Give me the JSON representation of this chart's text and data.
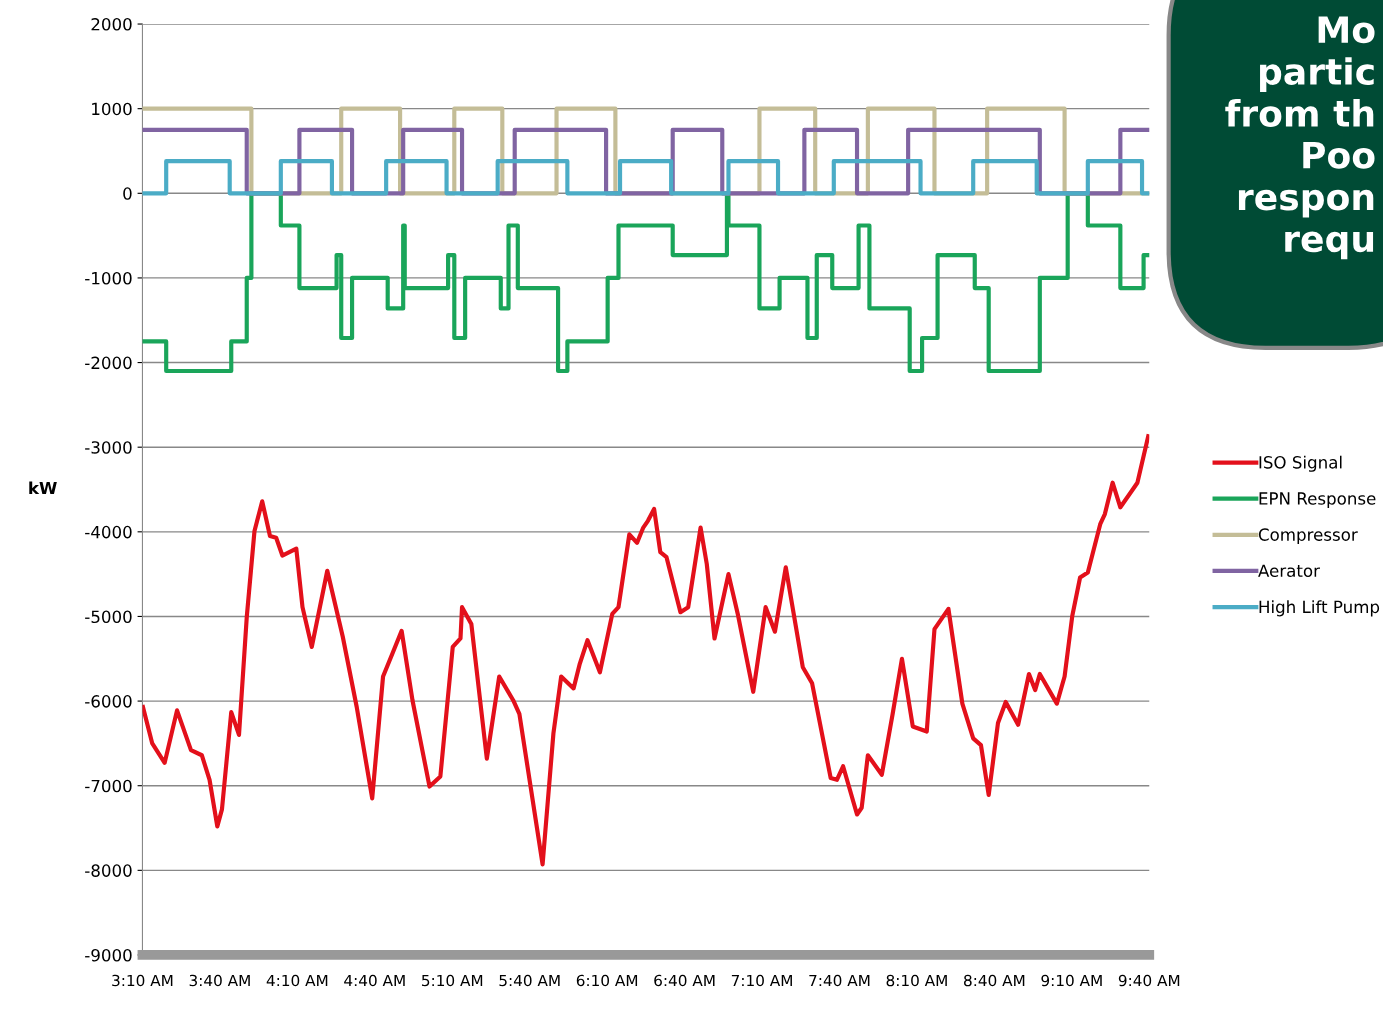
{
  "chart_data": {
    "type": "line",
    "ylabel": "kW",
    "xlim": [
      3.1667,
      9.6667
    ],
    "xticks": [
      {
        "value": 3.1667,
        "label": "3:10 AM"
      },
      {
        "value": 3.6667,
        "label": "3:40 AM"
      },
      {
        "value": 4.1667,
        "label": "4:10 AM"
      },
      {
        "value": 4.6667,
        "label": "4:40 AM"
      },
      {
        "value": 5.1667,
        "label": "5:10 AM"
      },
      {
        "value": 5.6667,
        "label": "5:40 AM"
      },
      {
        "value": 6.1667,
        "label": "6:10 AM"
      },
      {
        "value": 6.6667,
        "label": "6:40 AM"
      },
      {
        "value": 7.1667,
        "label": "7:10 AM"
      },
      {
        "value": 7.6667,
        "label": "7:40 AM"
      },
      {
        "value": 8.1667,
        "label": "8:10 AM"
      },
      {
        "value": 8.6667,
        "label": "8:40 AM"
      },
      {
        "value": 9.1667,
        "label": "9:10 AM"
      },
      {
        "value": 9.6667,
        "label": "9:40 AM"
      }
    ],
    "ylim": [
      -9000,
      2000
    ],
    "yticks": [
      -9000,
      -8000,
      -7000,
      -6000,
      -5000,
      -4000,
      -3000,
      -2000,
      -1000,
      0,
      1000,
      2000
    ],
    "grid": "y",
    "legend": "right",
    "marker": "none",
    "line_style": "solid",
    "annotations": [
      "Mo\npartic\nfrom th\nPoo\nrespon\nrequ"
    ],
    "series": [
      {
        "name": "ISO Signal",
        "color": "#e3101b",
        "x": [
          3.17,
          3.23,
          3.31,
          3.39,
          3.48,
          3.55,
          3.6,
          3.65,
          3.68,
          3.74,
          3.79,
          3.84,
          3.89,
          3.94,
          3.99,
          4.03,
          4.07,
          4.16,
          4.2,
          4.26,
          4.36,
          4.46,
          4.55,
          4.65,
          4.72,
          4.78,
          4.84,
          4.91,
          5.02,
          5.09,
          5.17,
          5.22,
          5.23,
          5.29,
          5.39,
          5.47,
          5.56,
          5.6,
          5.75,
          5.82,
          5.87,
          5.95,
          5.99,
          6.04,
          6.12,
          6.2,
          6.24,
          6.31,
          6.36,
          6.4,
          6.43,
          6.47,
          6.51,
          6.55,
          6.64,
          6.69,
          6.77,
          6.81,
          6.86,
          6.95,
          7.01,
          7.11,
          7.19,
          7.25,
          7.32,
          7.43,
          7.49,
          7.61,
          7.65,
          7.69,
          7.78,
          7.81,
          7.85,
          7.94,
          8.01,
          8.07,
          8.14,
          8.23,
          8.28,
          8.37,
          8.46,
          8.53,
          8.58,
          8.63,
          8.69,
          8.74,
          8.82,
          8.89,
          8.93,
          8.96,
          9.07,
          9.12,
          9.17,
          9.22,
          9.27,
          9.35,
          9.38,
          9.43,
          9.48,
          9.56,
          9.59,
          9.66
        ],
        "values": [
          -6070,
          -6500,
          -6730,
          -6110,
          -6580,
          -6640,
          -6930,
          -7480,
          -7280,
          -6130,
          -6400,
          -5010,
          -3990,
          -3640,
          -4050,
          -4070,
          -4280,
          -4200,
          -4890,
          -5360,
          -4460,
          -5240,
          -6070,
          -7150,
          -5710,
          -5440,
          -5170,
          -5990,
          -7010,
          -6890,
          -5360,
          -5260,
          -4890,
          -5090,
          -6680,
          -5710,
          -5990,
          -6150,
          -7930,
          -6380,
          -5710,
          -5850,
          -5560,
          -5280,
          -5660,
          -4970,
          -4890,
          -4030,
          -4130,
          -3950,
          -3870,
          -3730,
          -4240,
          -4300,
          -4950,
          -4890,
          -3950,
          -4380,
          -5260,
          -4500,
          -4970,
          -5890,
          -4890,
          -5180,
          -4420,
          -5600,
          -5790,
          -6910,
          -6930,
          -6770,
          -7340,
          -7260,
          -6640,
          -6870,
          -6150,
          -5500,
          -6300,
          -6360,
          -5150,
          -4910,
          -6030,
          -6440,
          -6520,
          -7110,
          -6260,
          -6010,
          -6280,
          -5680,
          -5870,
          -5680,
          -6030,
          -5710,
          -4990,
          -4540,
          -4480,
          -3910,
          -3790,
          -3420,
          -3710,
          -3500,
          -3420,
          -2870
        ]
      },
      {
        "name": "EPN Response",
        "color": "#1aa55a",
        "type": "step",
        "x": [
          3.17,
          3.32,
          3.74,
          3.84,
          3.87,
          4.06,
          4.18,
          4.42,
          4.45,
          4.52,
          4.75,
          4.85,
          4.86,
          5.14,
          5.18,
          5.25,
          5.48,
          5.53,
          5.59,
          5.85,
          5.91,
          6.17,
          6.24,
          6.59,
          6.94,
          6.95,
          7.15,
          7.28,
          7.46,
          7.52,
          7.62,
          7.79,
          7.86,
          8.12,
          8.2,
          8.3,
          8.54,
          8.63,
          8.96,
          9.14,
          9.27,
          9.48,
          9.63,
          9.66
        ],
        "values": [
          -1750,
          -2100,
          -1750,
          -1000,
          0,
          -380,
          -1120,
          -730,
          -1710,
          -1000,
          -1360,
          -380,
          -1120,
          -730,
          -1710,
          -1000,
          -1360,
          -380,
          -1120,
          -2100,
          -1750,
          -1000,
          -380,
          -730,
          0,
          -380,
          -1360,
          -1000,
          -1710,
          -730,
          -1120,
          -380,
          -1360,
          -2100,
          -1710,
          -730,
          -1120,
          -2100,
          -1000,
          0,
          -380,
          -1120,
          -730,
          -730
        ]
      },
      {
        "name": "Compressor",
        "color": "#c4bd97",
        "type": "step",
        "x": [
          3.17,
          3.87,
          4.45,
          4.83,
          5.18,
          5.49,
          5.84,
          6.22,
          7.15,
          7.51,
          7.85,
          8.28,
          8.62,
          9.12,
          9.66
        ],
        "values": [
          1000,
          0,
          1000,
          0,
          1000,
          0,
          1000,
          0,
          1000,
          0,
          1000,
          0,
          1000,
          0,
          0
        ]
      },
      {
        "name": "Aerator",
        "color": "#8064a2",
        "type": "step",
        "x": [
          3.17,
          3.84,
          4.18,
          4.52,
          4.85,
          5.23,
          5.57,
          6.16,
          6.59,
          6.91,
          7.44,
          7.78,
          8.11,
          8.96,
          9.48,
          9.66
        ],
        "values": [
          750,
          0,
          750,
          0,
          750,
          0,
          750,
          0,
          750,
          0,
          750,
          0,
          750,
          0,
          750,
          750
        ]
      },
      {
        "name": "High Lift Pump",
        "color": "#4bacc6",
        "type": "step",
        "x": [
          3.17,
          3.32,
          3.73,
          4.06,
          4.39,
          4.74,
          5.13,
          5.46,
          5.91,
          6.25,
          6.58,
          6.95,
          7.27,
          7.63,
          8.19,
          8.53,
          8.94,
          9.27,
          9.62,
          9.66
        ],
        "values": [
          0,
          380,
          0,
          380,
          0,
          380,
          0,
          380,
          0,
          380,
          0,
          380,
          0,
          380,
          0,
          380,
          0,
          380,
          0,
          0
        ]
      }
    ]
  }
}
